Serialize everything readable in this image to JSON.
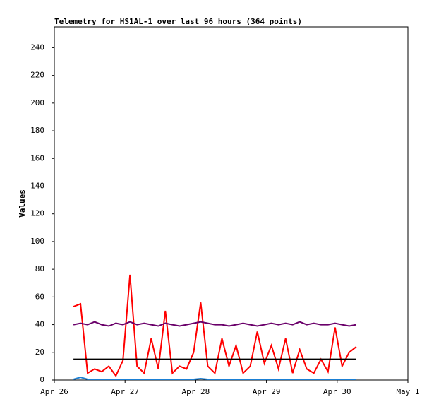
{
  "chart_data": {
    "type": "line",
    "title": "Telemetry for HS1AL-1 over last 96 hours (364 points)",
    "y_label": "Values",
    "x": [
      26.27,
      26.37,
      26.47,
      26.57,
      26.67,
      26.77,
      26.87,
      26.97,
      27.07,
      27.17,
      27.27,
      27.37,
      27.47,
      27.57,
      27.67,
      27.77,
      27.87,
      27.97,
      28.07,
      28.17,
      28.27,
      28.37,
      28.47,
      28.57,
      28.67,
      28.77,
      28.87,
      28.97,
      29.07,
      29.17,
      29.27,
      29.37,
      29.47,
      29.57,
      29.67,
      29.77,
      29.87,
      29.97,
      30.07,
      30.17,
      30.27
    ],
    "series": [
      {
        "color": "#ff0000",
        "values": [
          53,
          55,
          5,
          8,
          6,
          10,
          3,
          14,
          76,
          10,
          5,
          30,
          8,
          50,
          5,
          10,
          8,
          20,
          56,
          10,
          5,
          30,
          10,
          25,
          5,
          10,
          35,
          12,
          25,
          8,
          30,
          5,
          22,
          8,
          5,
          15,
          6,
          38,
          10,
          20,
          24
        ]
      },
      {
        "color": "#6a006a",
        "values": [
          40,
          41,
          40,
          42,
          40,
          39,
          41,
          40,
          42,
          40,
          41,
          40,
          39,
          41,
          40,
          39,
          40,
          41,
          42,
          41,
          40,
          40,
          39,
          40,
          41,
          40,
          39,
          40,
          41,
          40,
          41,
          40,
          42,
          40,
          41,
          40,
          40,
          41,
          40,
          39,
          40
        ]
      },
      {
        "color": "#000000",
        "values": [
          15,
          15,
          15,
          15,
          15,
          15,
          15,
          15,
          15,
          15,
          15,
          15,
          15,
          15,
          15,
          15,
          15,
          15,
          15,
          15,
          15,
          15,
          15,
          15,
          15,
          15,
          15,
          15,
          15,
          15,
          15,
          15,
          15,
          15,
          15,
          15,
          15,
          15,
          15,
          15,
          15
        ]
      },
      {
        "color": "#1a7fd4",
        "values": [
          0.5,
          2,
          0.5,
          0.5,
          0.5,
          0.5,
          0.5,
          0.5,
          0.5,
          0.5,
          0.5,
          0.5,
          0.5,
          0.5,
          0.5,
          0.5,
          0.5,
          0.5,
          1,
          0.5,
          0.5,
          0.5,
          0.5,
          0.5,
          0.5,
          0.5,
          0.5,
          0.5,
          0.5,
          0.5,
          0.5,
          0.5,
          0.5,
          0.5,
          0.5,
          0.5,
          0.5,
          0.5,
          0.5,
          0.5,
          0.5
        ]
      }
    ],
    "xlim": [
      26,
      31
    ],
    "xticks": [
      {
        "value": 26,
        "label": "Apr 26"
      },
      {
        "value": 27,
        "label": "Apr 27"
      },
      {
        "value": 28,
        "label": "Apr 28"
      },
      {
        "value": 29,
        "label": "Apr 29"
      },
      {
        "value": 30,
        "label": "Apr 30"
      },
      {
        "value": 31,
        "label": "May 1"
      }
    ],
    "ylim": [
      0,
      255
    ],
    "yticks": [
      0,
      20,
      40,
      60,
      80,
      100,
      120,
      140,
      160,
      180,
      200,
      220,
      240
    ],
    "grid": false
  }
}
